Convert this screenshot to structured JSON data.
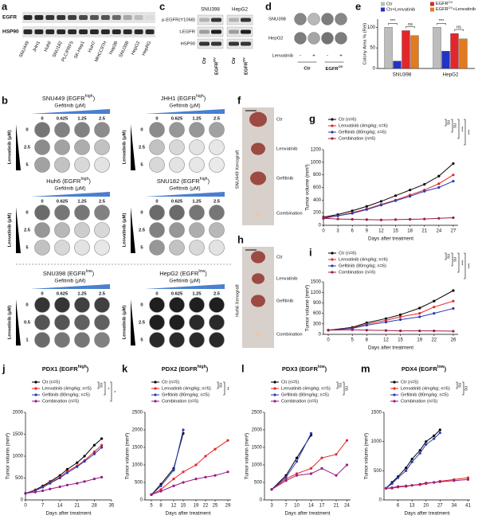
{
  "panel_a": {
    "label": "a",
    "rows": [
      "EGFR",
      "HSP90"
    ],
    "cell_lines": [
      {
        "name": "SNU449",
        "color": "#d62828"
      },
      {
        "name": "JHH1",
        "color": "#d62828"
      },
      {
        "name": "Huh6",
        "color": "#d62828"
      },
      {
        "name": "SNU182",
        "color": "#d62828"
      },
      {
        "name": "PLC/PRF5",
        "color": "#d62828"
      },
      {
        "name": "SK-Hep1",
        "color": "#d62828"
      },
      {
        "name": "HuH7",
        "color": "#d62828"
      },
      {
        "name": "MHCC97H",
        "color": "#d62828"
      },
      {
        "name": "Hep3B",
        "color": "#d62828"
      },
      {
        "name": "SNU398",
        "color": "#222222"
      },
      {
        "name": "HepG2",
        "color": "#222222"
      },
      {
        "name": "HepRG",
        "color": "#e0b000"
      }
    ]
  },
  "panel_b": {
    "label": "b",
    "x_title": "Gefitinib (μM)",
    "y_title": "Lenvatinib (μM)",
    "gefitinib": [
      0,
      0.625,
      1.25,
      2.5
    ],
    "plates": [
      {
        "title": [
          "SNU449 (EGFR",
          "high",
          ")"
        ],
        "color": "#d62828",
        "lenvatinib": [
          0,
          2.5,
          5
        ]
      },
      {
        "title": [
          "JHH1 (EGFR",
          "high",
          ")"
        ],
        "color": "#d62828",
        "lenvatinib": [
          0,
          2.5,
          5
        ]
      },
      {
        "title": [
          "Huh6 (EGFR",
          "high",
          ")"
        ],
        "color": "#d62828",
        "lenvatinib": [
          0,
          2.5,
          5
        ]
      },
      {
        "title": [
          "SNU182 (EGFR",
          "high",
          ")"
        ],
        "color": "#d62828",
        "lenvatinib": [
          0,
          2.5,
          5
        ]
      },
      {
        "title": [
          "SNU398 (EGFR",
          "low",
          ")"
        ],
        "color": "#111111",
        "lenvatinib": [
          0,
          0.5,
          1
        ]
      },
      {
        "title": [
          "HepG2 (EGFR",
          "low",
          ")"
        ],
        "color": "#111111",
        "lenvatinib": [
          0,
          2.5,
          5
        ]
      }
    ]
  },
  "panel_c": {
    "label": "c",
    "cells": [
      "SNU398",
      "HepG2"
    ],
    "rows": [
      "p-EGFR(Y1068)",
      "t-EGFR",
      "HSP90"
    ],
    "lanes": [
      "Ctr",
      [
        "EGFR",
        "OV"
      ]
    ]
  },
  "panel_d": {
    "label": "d",
    "rows": [
      "SNU398",
      "HepG2"
    ],
    "treatment": "Lenvatinib",
    "signs": [
      "-",
      "+",
      "-",
      "+"
    ],
    "groups": [
      "Ctr",
      [
        "EGFR",
        "OV"
      ]
    ]
  },
  "panel_f": {
    "label": "f",
    "title": "SNU449 Xenograft",
    "items": [
      "Ctr",
      "Lenvatinib",
      "Gefitinib",
      "Combination"
    ]
  },
  "panel_h": {
    "label": "h",
    "title": "Huh6 Xenograft",
    "items": [
      "Ctr",
      "Lenvatinib",
      "Gefitinib",
      "Combination"
    ]
  },
  "chart_data": [
    {
      "type": "bar",
      "label": "e",
      "y_label": "Colony Area % (Rel)",
      "categories": [
        "SNU398",
        "HepG2"
      ],
      "ylim": [
        0,
        120
      ],
      "yticks": [
        0,
        50,
        100
      ],
      "series": [
        {
          "name": "Ctr",
          "color": "#bdbdbd",
          "values": [
            100,
            100
          ]
        },
        {
          "name": "Ctr+Lenvatinib",
          "color": "#2233c8",
          "values": [
            18,
            42
          ]
        },
        {
          "name": [
            "EGFR",
            "OV"
          ],
          "color": "#e3262b",
          "values": [
            92,
            85
          ]
        },
        {
          "name": [
            "EGFR",
            "OV",
            "+Lenvatinib"
          ],
          "color": "#e07b1f",
          "values": [
            80,
            72
          ]
        }
      ],
      "annotations": [
        [
          "***",
          "ns"
        ],
        [
          "***",
          "ns"
        ]
      ]
    },
    {
      "type": "line",
      "label": "g",
      "x_label": "Days after treatment",
      "y_label": "Tumor volume (mm³)",
      "x": [
        0,
        3,
        6,
        9,
        12,
        15,
        18,
        21,
        24,
        27
      ],
      "xlim": [
        0,
        28
      ],
      "xticks": [
        0,
        3,
        6,
        9,
        12,
        15,
        18,
        21,
        24,
        27
      ],
      "ylim": [
        0,
        1200
      ],
      "yticks": [
        0,
        200,
        400,
        600,
        800,
        1000,
        1200
      ],
      "series": [
        {
          "name": "Ctr (n=6)",
          "color": "#000000",
          "values": [
            130,
            170,
            230,
            300,
            380,
            470,
            560,
            650,
            780,
            980
          ]
        },
        {
          "name": "Lenvatinib (4mg/kg; n=6)",
          "color": "#e3262b",
          "values": [
            120,
            150,
            200,
            260,
            330,
            400,
            480,
            560,
            660,
            800
          ]
        },
        {
          "name": "Gefitinib (80mg/kg; n=6)",
          "color": "#2a3bb0",
          "values": [
            110,
            150,
            190,
            250,
            320,
            390,
            460,
            540,
            600,
            700
          ]
        },
        {
          "name": "Combination (n=6)",
          "color": "#9b1b4f",
          "values": [
            110,
            100,
            95,
            90,
            85,
            90,
            95,
            100,
            110,
            120
          ]
        }
      ],
      "significance": [
        "ns",
        "ns",
        "***",
        "***"
      ]
    },
    {
      "type": "line",
      "label": "i",
      "x_label": "Days after treatment",
      "y_label": "Tumor volume (mm³)",
      "x": [
        0,
        5,
        8,
        12,
        15,
        19,
        22,
        26
      ],
      "xlim": [
        -1,
        27
      ],
      "xticks": [
        0,
        5,
        8,
        12,
        15,
        19,
        22,
        26
      ],
      "ylim": [
        0,
        1500
      ],
      "yticks": [
        0,
        300,
        600,
        900,
        1200,
        1500
      ],
      "series": [
        {
          "name": "Ctr (n=6)",
          "color": "#000000",
          "values": [
            120,
            200,
            330,
            450,
            560,
            750,
            950,
            1250
          ]
        },
        {
          "name": "Lenvatinib (4mg/kg; n=6)",
          "color": "#e3262b",
          "values": [
            120,
            180,
            290,
            400,
            500,
            600,
            780,
            950
          ]
        },
        {
          "name": "Gefitinib (80mg/kg; n=6)",
          "color": "#2a3bb0",
          "values": [
            120,
            170,
            260,
            350,
            420,
            500,
            600,
            740
          ]
        },
        {
          "name": "Combination (n=6)",
          "color": "#9b1b4f",
          "values": [
            120,
            130,
            120,
            110,
            100,
            100,
            100,
            90
          ]
        }
      ],
      "significance": [
        "ns",
        "ns",
        "***",
        "***"
      ]
    },
    {
      "type": "line",
      "label": "j",
      "title": [
        "PDX1 (EGFR",
        "high",
        ")"
      ],
      "x_label": "Days after treatment",
      "y_label": "Tumor volumn (mm³)",
      "x": [
        0,
        4,
        7,
        10,
        14,
        17,
        21,
        24,
        28,
        31
      ],
      "xlim": [
        0,
        35
      ],
      "xticks": [
        0,
        7,
        14,
        21,
        28,
        35
      ],
      "ylim": [
        0,
        2000
      ],
      "yticks": [
        0,
        500,
        1000,
        1500,
        2000
      ],
      "series": [
        {
          "name": "Ctr (n=5)",
          "color": "#000000",
          "values": [
            150,
            230,
            320,
            420,
            560,
            700,
            850,
            1000,
            1250,
            1400
          ]
        },
        {
          "name": "Lenvatinib (4mg/kg; n=5)",
          "color": "#e3262b",
          "values": [
            150,
            220,
            300,
            400,
            520,
            650,
            780,
            900,
            1100,
            1250
          ]
        },
        {
          "name": "Gefitinib (80mg/kg; n=5)",
          "color": "#2a3bb0",
          "values": [
            150,
            210,
            290,
            380,
            500,
            620,
            760,
            880,
            1050,
            1200
          ]
        },
        {
          "name": "Combination (n=5)",
          "color": "#9b1b7f",
          "values": [
            150,
            180,
            210,
            250,
            300,
            340,
            380,
            420,
            480,
            520
          ]
        }
      ],
      "significance": [
        "ns",
        "*",
        "*"
      ]
    },
    {
      "type": "line",
      "label": "k",
      "title": [
        "PDX2 (EGFR",
        "high",
        ")"
      ],
      "x_label": "Days after treatment",
      "y_label": "Tumor volumn (mm³)",
      "x": [
        5,
        8,
        12,
        15,
        19,
        22,
        25,
        29
      ],
      "xlim": [
        3,
        30
      ],
      "xticks": [
        5,
        8,
        12,
        15,
        19,
        22,
        25,
        29
      ],
      "ylim": [
        0,
        2500
      ],
      "yticks": [
        0,
        500,
        1000,
        1500,
        2000,
        2500
      ],
      "series": [
        {
          "name": "Ctr (n=5)",
          "color": "#000000",
          "values": [
            150,
            450,
            900,
            1900,
            null,
            null,
            null,
            null
          ]
        },
        {
          "name": "Lenvatinib (4mg/kg; n=5)",
          "color": "#e3262b",
          "values": [
            150,
            300,
            600,
            800,
            1000,
            1250,
            1450,
            1700
          ]
        },
        {
          "name": "Gefitinib (80mg/kg; n=5)",
          "color": "#2a3bb0",
          "values": [
            150,
            400,
            850,
            2000,
            null,
            null,
            null,
            null
          ]
        },
        {
          "name": "Combination (n=5)",
          "color": "#9b1b7f",
          "values": [
            150,
            250,
            400,
            500,
            600,
            650,
            700,
            800
          ]
        }
      ],
      "significance": [
        "ns",
        "**"
      ]
    },
    {
      "type": "line",
      "label": "l",
      "title": [
        "PDX3 (EGFR",
        "low",
        ")"
      ],
      "x_label": "Days after treatment",
      "y_label": "Tumor volumn (mm³)",
      "x": [
        3,
        7,
        10,
        14,
        17,
        21,
        24
      ],
      "xlim": [
        1,
        25
      ],
      "xticks": [
        3,
        7,
        10,
        14,
        17,
        21,
        24
      ],
      "ylim": [
        0,
        2500
      ],
      "yticks": [
        0,
        500,
        1000,
        1500,
        2000,
        2500
      ],
      "series": [
        {
          "name": "Ctr (n=5)",
          "color": "#000000",
          "values": [
            300,
            700,
            1200,
            1850,
            null,
            null,
            null
          ]
        },
        {
          "name": "Lenvatinib (4mg/kg; n=5)",
          "color": "#e3262b",
          "values": [
            300,
            600,
            750,
            900,
            1200,
            1300,
            1700
          ]
        },
        {
          "name": "Gefitinib (80mg/kg; n=5)",
          "color": "#2a3bb0",
          "values": [
            300,
            650,
            1100,
            1900,
            null,
            null,
            null
          ]
        },
        {
          "name": "Combination (n=5)",
          "color": "#9b1b7f",
          "values": [
            300,
            550,
            700,
            750,
            900,
            700,
            1000
          ]
        }
      ],
      "significance": [
        "ns",
        "ns"
      ]
    },
    {
      "type": "line",
      "label": "m",
      "title": [
        "PDX4 (EGFR",
        "low",
        ")"
      ],
      "x_label": "Days after treatment",
      "y_label": "Tumor volumn (mm³)",
      "x": [
        0,
        3,
        6,
        10,
        13,
        17,
        20,
        24,
        27,
        34,
        41
      ],
      "xlim": [
        -1,
        42
      ],
      "xticks": [
        6,
        13,
        20,
        27,
        34,
        41
      ],
      "ylim": [
        0,
        1500
      ],
      "yticks": [
        0,
        500,
        1000,
        1500
      ],
      "series": [
        {
          "name": "Ctr (n=5)",
          "color": "#000000",
          "values": [
            200,
            300,
            400,
            550,
            700,
            850,
            1000,
            1100,
            1200,
            null,
            null
          ]
        },
        {
          "name": "Lenvatinib (4mg/kg; n=5)",
          "color": "#e3262b",
          "values": [
            200,
            200,
            220,
            230,
            250,
            260,
            280,
            300,
            320,
            350,
            380
          ]
        },
        {
          "name": "Gefitinib (80mg/kg; n=5)",
          "color": "#2a3bb0",
          "values": [
            200,
            280,
            380,
            500,
            650,
            800,
            950,
            1050,
            1150,
            null,
            null
          ]
        },
        {
          "name": "Combination (n=5)",
          "color": "#9b1b7f",
          "values": [
            200,
            210,
            230,
            240,
            250,
            270,
            290,
            300,
            310,
            330,
            350
          ]
        }
      ],
      "significance": [
        "ns",
        "ns"
      ]
    }
  ]
}
